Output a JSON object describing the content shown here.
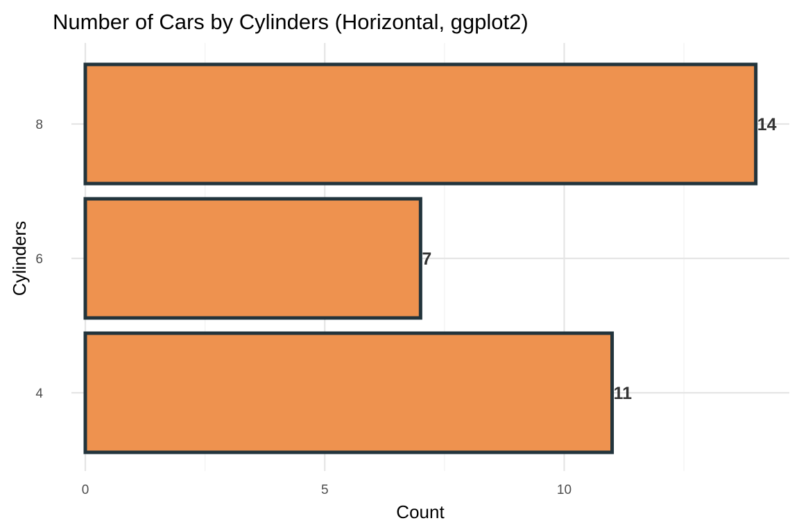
{
  "chart_data": {
    "type": "bar",
    "orientation": "horizontal",
    "title": "Number of Cars by Cylinders (Horizontal, ggplot2)",
    "xlabel": "Count",
    "ylabel": "Cylinders",
    "categories": [
      "4",
      "6",
      "8"
    ],
    "values": [
      11,
      7,
      14
    ],
    "data_labels": [
      "11",
      "7",
      "14"
    ],
    "xlim": [
      0,
      14.7
    ],
    "x_ticks": [
      0,
      5,
      10
    ],
    "x_tick_labels": [
      "0",
      "5",
      "10"
    ],
    "grid": true,
    "legend": "none",
    "colors": {
      "bar_fill": "#EE924F",
      "bar_stroke": "#22343C",
      "grid_major": "#E5E5E5",
      "grid_minor": "#F2F2F2",
      "tick_label": "#4D4D4D",
      "data_label": "#333333"
    }
  }
}
